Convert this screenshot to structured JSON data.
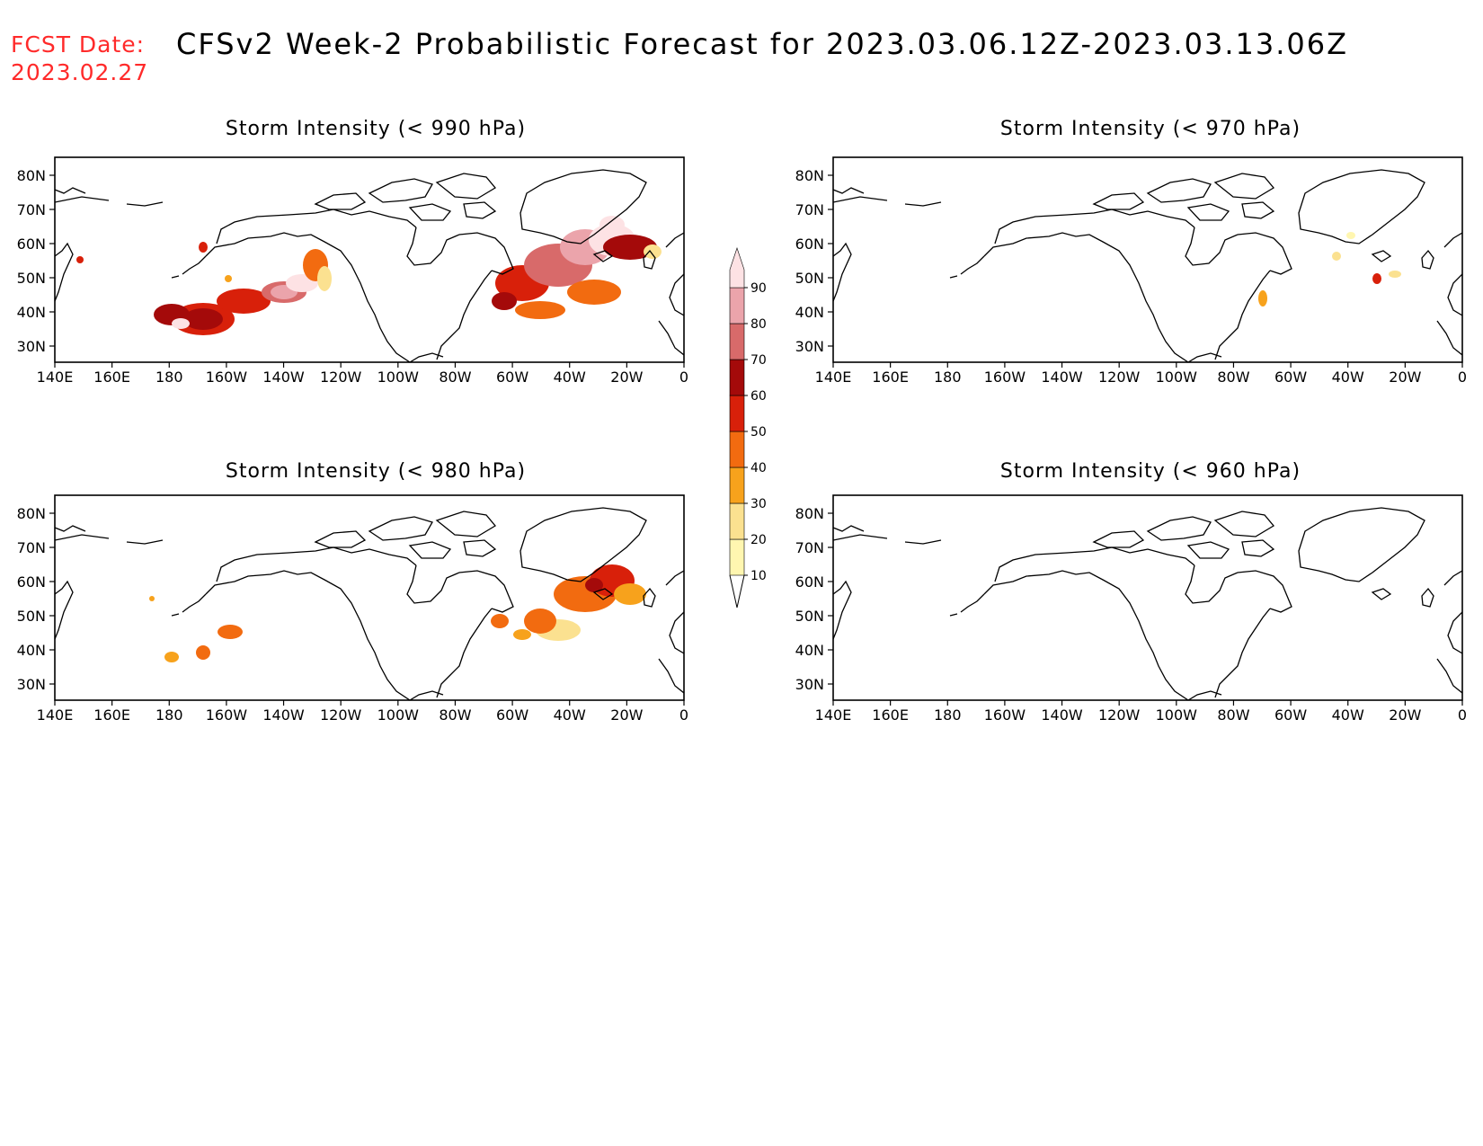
{
  "header": {
    "fcst_label": "FCST Date:",
    "fcst_date": "2023.02.27",
    "title": "CFSv2 Week-2 Probabilistic Forecast for 2023.03.06.12Z-2023.03.13.06Z"
  },
  "axes": {
    "lat_ticks": [
      "80N",
      "70N",
      "60N",
      "50N",
      "40N",
      "30N"
    ],
    "lon_ticks": [
      "140E",
      "160E",
      "180",
      "160W",
      "140W",
      "120W",
      "100W",
      "80W",
      "60W",
      "40W",
      "20W",
      "0"
    ]
  },
  "panels": [
    {
      "id": "p990",
      "title": "Storm Intensity (< 990 hPa)"
    },
    {
      "id": "p970",
      "title": "Storm Intensity (< 970 hPa)"
    },
    {
      "id": "p980",
      "title": "Storm Intensity (< 980 hPa)"
    },
    {
      "id": "p960",
      "title": "Storm Intensity (< 960 hPa)"
    }
  ],
  "colorbar": {
    "labels": [
      "10",
      "20",
      "30",
      "40",
      "50",
      "60",
      "70",
      "80",
      "90"
    ],
    "colors": [
      "#fff6b0",
      "#fbe190",
      "#f7a21c",
      "#f26b10",
      "#d8200a",
      "#a40a0a",
      "#d86a6a",
      "#eba4ab",
      "#fde2e4"
    ]
  }
}
